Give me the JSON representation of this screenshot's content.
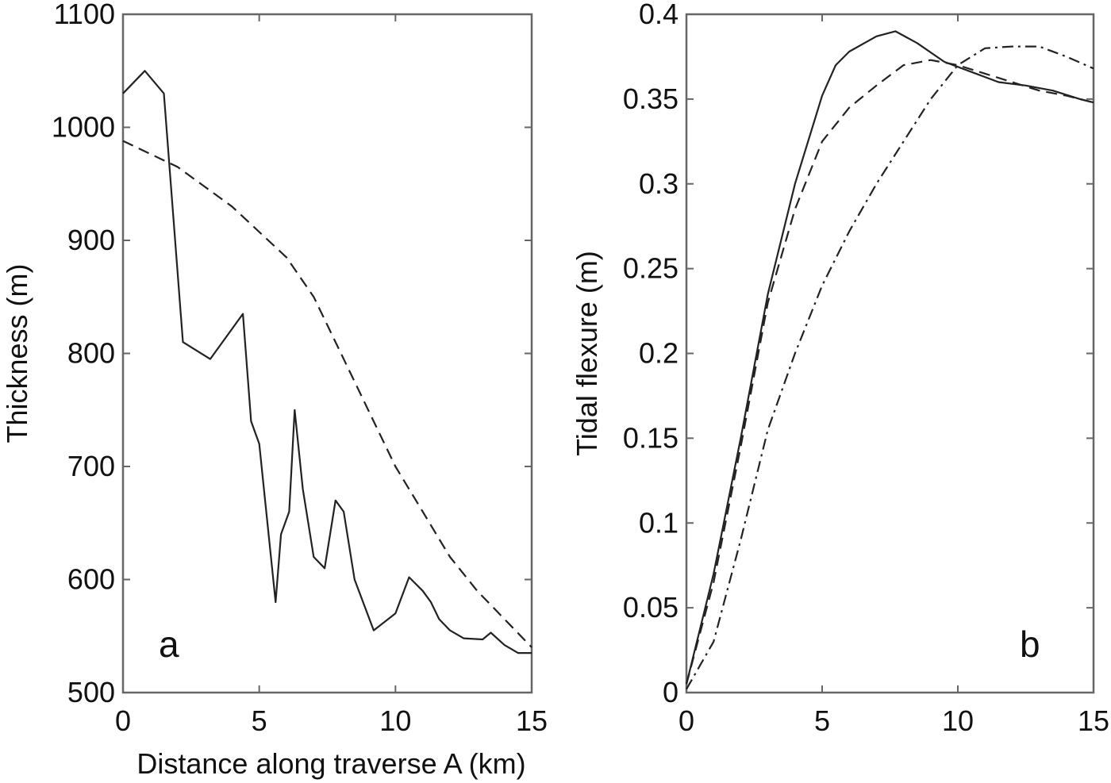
{
  "chart_data": [
    {
      "panel_label": "a",
      "type": "line",
      "xlabel": "Distance along traverse A (km)",
      "ylabel": "Thickness (m)",
      "xlim": [
        0,
        15
      ],
      "ylim": [
        500,
        1100
      ],
      "xticks": [
        0,
        5,
        10,
        15
      ],
      "yticks": [
        500,
        600,
        700,
        800,
        900,
        1000,
        1100
      ],
      "xtick_labels": [
        "0",
        "5",
        "10",
        "15"
      ],
      "ytick_labels": [
        "500",
        "600",
        "700",
        "800",
        "900",
        "1000",
        "1100"
      ],
      "grid": false,
      "series": [
        {
          "style": "solid",
          "color": "#222222",
          "x": [
            0,
            0.8,
            1.5,
            2.2,
            3.2,
            4.4,
            4.7,
            5.0,
            5.6,
            5.8,
            6.1,
            6.3,
            6.6,
            7.0,
            7.4,
            7.8,
            8.1,
            8.5,
            9.2,
            10.0,
            10.5,
            11.0,
            11.3,
            11.6,
            12.0,
            12.5,
            13.2,
            13.5,
            14.0,
            14.5,
            15.0
          ],
          "y": [
            1030,
            1050,
            1030,
            810,
            795,
            835,
            740,
            720,
            580,
            640,
            660,
            750,
            680,
            620,
            610,
            670,
            660,
            600,
            555,
            570,
            602,
            590,
            580,
            565,
            555,
            548,
            547,
            553,
            542,
            535,
            535
          ]
        },
        {
          "style": "dashed",
          "color": "#555555",
          "x": [
            0,
            2,
            4,
            6,
            7,
            8,
            9,
            10,
            11,
            12,
            13,
            14,
            15
          ],
          "y": [
            988,
            965,
            930,
            885,
            850,
            800,
            750,
            700,
            660,
            620,
            590,
            565,
            540
          ]
        }
      ]
    },
    {
      "panel_label": "b",
      "type": "line",
      "xlabel": "",
      "ylabel": "Tidal flexure (m)",
      "xlim": [
        0,
        15
      ],
      "ylim": [
        0,
        0.4
      ],
      "xticks": [
        0,
        5,
        10,
        15
      ],
      "yticks": [
        0,
        0.05,
        0.1,
        0.15,
        0.2,
        0.25,
        0.3,
        0.35,
        0.4
      ],
      "xtick_labels": [
        "0",
        "5",
        "10",
        "15"
      ],
      "ytick_labels": [
        "0",
        "0.05",
        "0.1",
        "0.15",
        "0.2",
        "0.25",
        "0.3",
        "0.35",
        "0.4"
      ],
      "grid": false,
      "series": [
        {
          "style": "solid",
          "color": "#222222",
          "x": [
            0,
            1,
            2,
            3,
            4,
            5,
            5.5,
            6,
            7,
            7.7,
            8.5,
            9.5,
            10.5,
            11.5,
            12.5,
            13.5,
            14.5,
            15
          ],
          "y": [
            0.005,
            0.07,
            0.15,
            0.235,
            0.3,
            0.352,
            0.37,
            0.378,
            0.387,
            0.39,
            0.383,
            0.372,
            0.366,
            0.36,
            0.358,
            0.355,
            0.35,
            0.348
          ]
        },
        {
          "style": "dashed",
          "color": "#333333",
          "x": [
            0,
            1,
            2,
            3,
            4,
            5,
            6,
            7,
            8,
            9,
            10,
            11,
            12,
            13,
            14,
            15
          ],
          "y": [
            0.005,
            0.065,
            0.145,
            0.23,
            0.285,
            0.325,
            0.345,
            0.358,
            0.37,
            0.373,
            0.37,
            0.365,
            0.36,
            0.355,
            0.352,
            0.348
          ]
        },
        {
          "style": "dashdot",
          "color": "#555555",
          "x": [
            0,
            1,
            2,
            3,
            4,
            5,
            6,
            7,
            8,
            9,
            10,
            11,
            12,
            13,
            14,
            15
          ],
          "y": [
            0.002,
            0.03,
            0.09,
            0.155,
            0.2,
            0.24,
            0.272,
            0.3,
            0.325,
            0.35,
            0.37,
            0.38,
            0.381,
            0.381,
            0.375,
            0.368
          ]
        }
      ]
    }
  ]
}
